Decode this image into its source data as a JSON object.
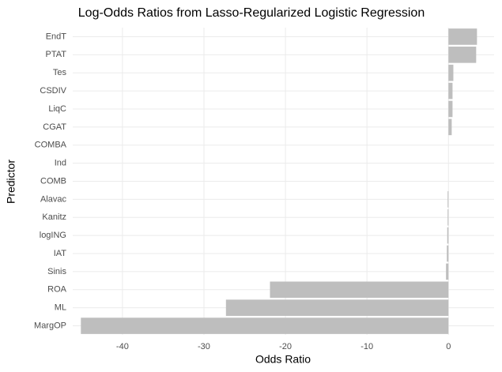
{
  "chart_data": {
    "type": "hbar",
    "title": "Log-Odds Ratios from Lasso-Regularized Logistic Regression",
    "x_label": "Odds Ratio",
    "y_label": "Predictor",
    "categories": [
      "EndT",
      "PTAT",
      "Tes",
      "CSDIV",
      "LiqC",
      "CGAT",
      "COMBA",
      "Ind",
      "COMB",
      "Alavac",
      "Kanitz",
      "logING",
      "IAT",
      "Sinis",
      "ROA",
      "ML",
      "MargOP"
    ],
    "values": [
      3.5,
      3.4,
      0.6,
      0.5,
      0.5,
      0.4,
      0,
      0,
      0,
      -0.1,
      -0.1,
      -0.15,
      -0.2,
      -0.3,
      -21.9,
      -27.3,
      -45.1
    ],
    "color": "#bebebe",
    "xlim": [
      -46.1,
      5.6
    ],
    "xticks": [
      -40,
      -30,
      -20,
      -10,
      0
    ],
    "grid": true
  }
}
